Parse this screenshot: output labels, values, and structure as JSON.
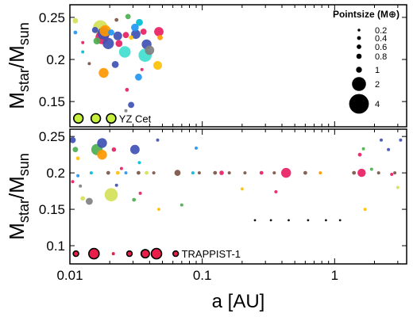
{
  "chart_data": [
    {
      "type": "scatter",
      "panel": "top",
      "xscale": "log",
      "xlim": [
        0.01,
        3.5
      ],
      "ylim": [
        0.12,
        0.265
      ],
      "ylabel": {
        "main": "M",
        "sub1": "star",
        "sep": "/M",
        "sub2": "sun"
      },
      "xlabel": "",
      "yticks": [
        0.15,
        0.2,
        0.25
      ],
      "ytick_labels": [
        "0.15",
        "0.2",
        "0.25"
      ],
      "annotation": "YZ Cet",
      "legend": {
        "title": "Pointsize (M⊕)",
        "placement": "top-right",
        "entries": [
          {
            "label": "0.2",
            "mass": 0.2
          },
          {
            "label": "0.4",
            "mass": 0.4
          },
          {
            "label": "0.6",
            "mass": 0.6
          },
          {
            "label": "0.8",
            "mass": 0.8
          },
          {
            "label": "1",
            "mass": 1
          },
          {
            "label": "2",
            "mass": 2
          },
          {
            "label": "4",
            "mass": 4
          }
        ]
      },
      "points": [
        {
          "a": 0.011,
          "m": 0.246,
          "mass": 0.3,
          "color": "#d4e157"
        },
        {
          "a": 0.011,
          "m": 0.232,
          "mass": 0.15,
          "color": "#2196f3"
        },
        {
          "a": 0.0125,
          "m": 0.22,
          "mass": 0.1,
          "color": "#e91e63"
        },
        {
          "a": 0.0125,
          "m": 0.209,
          "mass": 0.1,
          "color": "#00bcd4"
        },
        {
          "a": 0.014,
          "m": 0.195,
          "mass": 0.1,
          "color": "#795548"
        },
        {
          "a": 0.0155,
          "m": 0.235,
          "mass": 0.4,
          "color": "#3f51b5"
        },
        {
          "a": 0.016,
          "m": 0.222,
          "mass": 0.5,
          "color": "#4caf50"
        },
        {
          "a": 0.017,
          "m": 0.238,
          "mass": 2.2,
          "color": "#d4e157"
        },
        {
          "a": 0.0175,
          "m": 0.226,
          "mass": 1.8,
          "color": "#e91e63"
        },
        {
          "a": 0.018,
          "m": 0.231,
          "mass": 1.6,
          "color": "#3f51b5"
        },
        {
          "a": 0.0185,
          "m": 0.234,
          "mass": 1.3,
          "color": "#ff9800"
        },
        {
          "a": 0.0195,
          "m": 0.219,
          "mass": 1.3,
          "color": "#3f51b5"
        },
        {
          "a": 0.0205,
          "m": 0.232,
          "mass": 0.4,
          "color": "#2196f3"
        },
        {
          "a": 0.0225,
          "m": 0.247,
          "mass": 0.15,
          "color": "#795548"
        },
        {
          "a": 0.023,
          "m": 0.228,
          "mass": 0.8,
          "color": "#3f51b5"
        },
        {
          "a": 0.0235,
          "m": 0.219,
          "mass": 0.5,
          "color": "#e91e63"
        },
        {
          "a": 0.018,
          "m": 0.184,
          "mass": 1.0,
          "color": "#ff9800"
        },
        {
          "a": 0.022,
          "m": 0.194,
          "mass": 0.5,
          "color": "#3f51b5"
        },
        {
          "a": 0.026,
          "m": 0.209,
          "mass": 1.4,
          "color": "#40e0d0"
        },
        {
          "a": 0.0265,
          "m": 0.229,
          "mass": 0.4,
          "color": "#e91e63"
        },
        {
          "a": 0.0275,
          "m": 0.251,
          "mass": 0.3,
          "color": "#4caf50"
        },
        {
          "a": 0.029,
          "m": 0.226,
          "mass": 0.2,
          "color": "#ffc107"
        },
        {
          "a": 0.031,
          "m": 0.238,
          "mass": 0.6,
          "color": "#2196f3"
        },
        {
          "a": 0.0315,
          "m": 0.23,
          "mass": 0.9,
          "color": "#3f51b5"
        },
        {
          "a": 0.0335,
          "m": 0.244,
          "mass": 0.5,
          "color": "#00bcd4"
        },
        {
          "a": 0.036,
          "m": 0.233,
          "mass": 0.4,
          "color": "#e91e63"
        },
        {
          "a": 0.037,
          "m": 0.205,
          "mass": 1.8,
          "color": "#40e0d0"
        },
        {
          "a": 0.038,
          "m": 0.218,
          "mass": 1.0,
          "color": "#3f51b5"
        },
        {
          "a": 0.04,
          "m": 0.211,
          "mass": 0.9,
          "color": "#808080"
        },
        {
          "a": 0.033,
          "m": 0.179,
          "mass": 0.5,
          "color": "#2196f3"
        },
        {
          "a": 0.035,
          "m": 0.188,
          "mass": 0.1,
          "color": "#e91e63"
        },
        {
          "a": 0.046,
          "m": 0.193,
          "mass": 0.8,
          "color": "#ffc107"
        },
        {
          "a": 0.047,
          "m": 0.233,
          "mass": 0.9,
          "color": "#e91e63"
        },
        {
          "a": 0.048,
          "m": 0.226,
          "mass": 0.3,
          "color": "#ff9800"
        },
        {
          "a": 0.027,
          "m": 0.164,
          "mass": 0.15,
          "color": "#e91e63"
        },
        {
          "a": 0.029,
          "m": 0.146,
          "mass": 0.4,
          "color": "#3f51b5"
        },
        {
          "a": 0.0265,
          "m": 0.139,
          "mass": 0.1,
          "color": "#808080"
        }
      ],
      "highlight_system": [
        {
          "a": 0.0116,
          "m": 0.13,
          "mass": 0.9,
          "color": "#c6ef3e"
        },
        {
          "a": 0.0157,
          "m": 0.13,
          "mass": 0.9,
          "color": "#c6ef3e"
        },
        {
          "a": 0.0205,
          "m": 0.13,
          "mass": 0.9,
          "color": "#c6ef3e"
        }
      ]
    },
    {
      "type": "scatter",
      "panel": "bottom",
      "xscale": "log",
      "xlim": [
        0.01,
        3.5
      ],
      "ylim": [
        0.075,
        0.26
      ],
      "ylabel": {
        "main": "M",
        "sub1": "star",
        "sep": "/M",
        "sub2": "sun"
      },
      "xlabel": "a [AU]",
      "xticks": [
        0.01,
        0.1,
        1
      ],
      "xtick_labels": [
        "0.01",
        "0.1",
        "1"
      ],
      "yticks": [
        0.1,
        0.15,
        0.2,
        0.25
      ],
      "ytick_labels": [
        "0.1",
        "0.15",
        "0.2",
        "0.25"
      ],
      "annotation": "TRAPPIST-1",
      "points": [
        {
          "a": 0.0105,
          "m": 0.245,
          "mass": 0.4,
          "color": "#3f51b5"
        },
        {
          "a": 0.011,
          "m": 0.232,
          "mass": 0.3,
          "color": "#4caf50"
        },
        {
          "a": 0.0115,
          "m": 0.22,
          "mass": 0.15,
          "color": "#ffc107"
        },
        {
          "a": 0.0115,
          "m": 0.196,
          "mass": 0.1,
          "color": "#2196f3"
        },
        {
          "a": 0.012,
          "m": 0.182,
          "mass": 0.1,
          "color": "#808080"
        },
        {
          "a": 0.0125,
          "m": 0.165,
          "mass": 0.2,
          "color": "#d4e157"
        },
        {
          "a": 0.0105,
          "m": 0.188,
          "mass": 0.1,
          "color": "#e91e63"
        },
        {
          "a": 0.0145,
          "m": 0.2,
          "mass": 0.1,
          "color": "#00bcd4"
        },
        {
          "a": 0.016,
          "m": 0.232,
          "mass": 1.3,
          "color": "#4caf50"
        },
        {
          "a": 0.0175,
          "m": 0.241,
          "mass": 1.0,
          "color": "#3f51b5"
        },
        {
          "a": 0.0175,
          "m": 0.225,
          "mass": 1.0,
          "color": "#ff9800"
        },
        {
          "a": 0.014,
          "m": 0.161,
          "mass": 0.5,
          "color": "#808080"
        },
        {
          "a": 0.0195,
          "m": 0.2,
          "mass": 0.15,
          "color": "#795548"
        },
        {
          "a": 0.0215,
          "m": 0.232,
          "mass": 0.2,
          "color": "#e91e63"
        },
        {
          "a": 0.0205,
          "m": 0.17,
          "mass": 1.8,
          "color": "#d4e157"
        },
        {
          "a": 0.023,
          "m": 0.2,
          "mass": 0.15,
          "color": "#ffc107"
        },
        {
          "a": 0.0225,
          "m": 0.183,
          "mass": 0.1,
          "color": "#3f51b5"
        },
        {
          "a": 0.0245,
          "m": 0.206,
          "mass": 0.1,
          "color": "#e91e63"
        },
        {
          "a": 0.0265,
          "m": 0.2,
          "mass": 0.1,
          "color": "#2196f3"
        },
        {
          "a": 0.031,
          "m": 0.232,
          "mass": 0.9,
          "color": "#3f51b5"
        },
        {
          "a": 0.033,
          "m": 0.2,
          "mass": 0.15,
          "color": "#795548"
        },
        {
          "a": 0.0335,
          "m": 0.214,
          "mass": 0.1,
          "color": "#00bcd4"
        },
        {
          "a": 0.0305,
          "m": 0.163,
          "mass": 0.15,
          "color": "#4caf50"
        },
        {
          "a": 0.034,
          "m": 0.172,
          "mass": 0.1,
          "color": "#e91e63"
        },
        {
          "a": 0.038,
          "m": 0.2,
          "mass": 0.15,
          "color": "#d4e157"
        },
        {
          "a": 0.043,
          "m": 0.2,
          "mass": 0.1,
          "color": "#795548"
        },
        {
          "a": 0.046,
          "m": 0.245,
          "mass": 0.1,
          "color": "#3f51b5"
        },
        {
          "a": 0.047,
          "m": 0.15,
          "mass": 0.1,
          "color": "#ffc107"
        },
        {
          "a": 0.065,
          "m": 0.2,
          "mass": 0.4,
          "color": "#795548"
        },
        {
          "a": 0.07,
          "m": 0.156,
          "mass": 0.1,
          "color": "#4caf50"
        },
        {
          "a": 0.085,
          "m": 0.2,
          "mass": 0.1,
          "color": "#00bcd4"
        },
        {
          "a": 0.09,
          "m": 0.234,
          "mass": 0.1,
          "color": "#2196f3"
        },
        {
          "a": 0.095,
          "m": 0.2,
          "mass": 0.1,
          "color": "#795548"
        },
        {
          "a": 0.125,
          "m": 0.2,
          "mass": 0.15,
          "color": "#795548"
        },
        {
          "a": 0.14,
          "m": 0.2,
          "mass": 0.2,
          "color": "#e91e63"
        },
        {
          "a": 0.16,
          "m": 0.2,
          "mass": 0.1,
          "color": "#795548"
        },
        {
          "a": 0.2,
          "m": 0.178,
          "mass": 0.1,
          "color": "#ffc107"
        },
        {
          "a": 0.21,
          "m": 0.2,
          "mass": 0.1,
          "color": "#795548"
        },
        {
          "a": 0.25,
          "m": 0.135,
          "mass": 0.05,
          "color": "#000000"
        },
        {
          "a": 0.28,
          "m": 0.2,
          "mass": 0.15,
          "color": "#e91e63"
        },
        {
          "a": 0.33,
          "m": 0.135,
          "mass": 0.05,
          "color": "#000000"
        },
        {
          "a": 0.35,
          "m": 0.2,
          "mass": 0.1,
          "color": "#795548"
        },
        {
          "a": 0.36,
          "m": 0.174,
          "mass": 0.1,
          "color": "#e91e63"
        },
        {
          "a": 0.43,
          "m": 0.2,
          "mass": 1.0,
          "color": "#e91e63"
        },
        {
          "a": 0.45,
          "m": 0.135,
          "mass": 0.05,
          "color": "#000000"
        },
        {
          "a": 0.6,
          "m": 0.2,
          "mass": 0.15,
          "color": "#795548"
        },
        {
          "a": 0.63,
          "m": 0.135,
          "mass": 0.05,
          "color": "#000000"
        },
        {
          "a": 0.78,
          "m": 0.2,
          "mass": 0.1,
          "color": "#ff9800"
        },
        {
          "a": 0.86,
          "m": 0.135,
          "mass": 0.05,
          "color": "#000000"
        },
        {
          "a": 1.1,
          "m": 0.135,
          "mass": 0.05,
          "color": "#000000"
        },
        {
          "a": 1.4,
          "m": 0.2,
          "mass": 0.15,
          "color": "#795548"
        },
        {
          "a": 1.55,
          "m": 0.225,
          "mass": 0.15,
          "color": "#e91e63"
        },
        {
          "a": 1.6,
          "m": 0.2,
          "mass": 0.7,
          "color": "#e91e63"
        },
        {
          "a": 1.65,
          "m": 0.233,
          "mass": 0.1,
          "color": "#4caf50"
        },
        {
          "a": 1.7,
          "m": 0.15,
          "mass": 0.1,
          "color": "#ffc107"
        },
        {
          "a": 1.9,
          "m": 0.205,
          "mass": 0.1,
          "color": "#4caf50"
        },
        {
          "a": 2.15,
          "m": 0.2,
          "mass": 0.1,
          "color": "#795548"
        },
        {
          "a": 2.25,
          "m": 0.245,
          "mass": 0.1,
          "color": "#3f51b5"
        },
        {
          "a": 2.55,
          "m": 0.232,
          "mass": 0.1,
          "color": "#3f51b5"
        },
        {
          "a": 2.7,
          "m": 0.198,
          "mass": 0.1,
          "color": "#e91e63"
        },
        {
          "a": 2.85,
          "m": 0.2,
          "mass": 0.1,
          "color": "#795548"
        },
        {
          "a": 3.0,
          "m": 0.18,
          "mass": 0.1,
          "color": "#d4e157"
        },
        {
          "a": 3.15,
          "m": 0.245,
          "mass": 0.1,
          "color": "#3f51b5"
        }
      ],
      "highlight_system": [
        {
          "a": 0.0111,
          "m": 0.089,
          "mass": 0.3,
          "color": "#e91e4a"
        },
        {
          "a": 0.0152,
          "m": 0.089,
          "mass": 1.1,
          "color": "#e91e4a"
        },
        {
          "a": 0.0213,
          "m": 0.089,
          "mass": 0.1,
          "color": "#e91e4a"
        },
        {
          "a": 0.0282,
          "m": 0.089,
          "mass": 0.3,
          "color": "#e91e4a"
        },
        {
          "a": 0.0371,
          "m": 0.089,
          "mass": 0.7,
          "color": "#e91e4a"
        },
        {
          "a": 0.0451,
          "m": 0.089,
          "mass": 1.1,
          "color": "#e91e4a"
        },
        {
          "a": 0.063,
          "m": 0.089,
          "mass": 0.3,
          "color": "#e91e4a"
        }
      ]
    }
  ]
}
